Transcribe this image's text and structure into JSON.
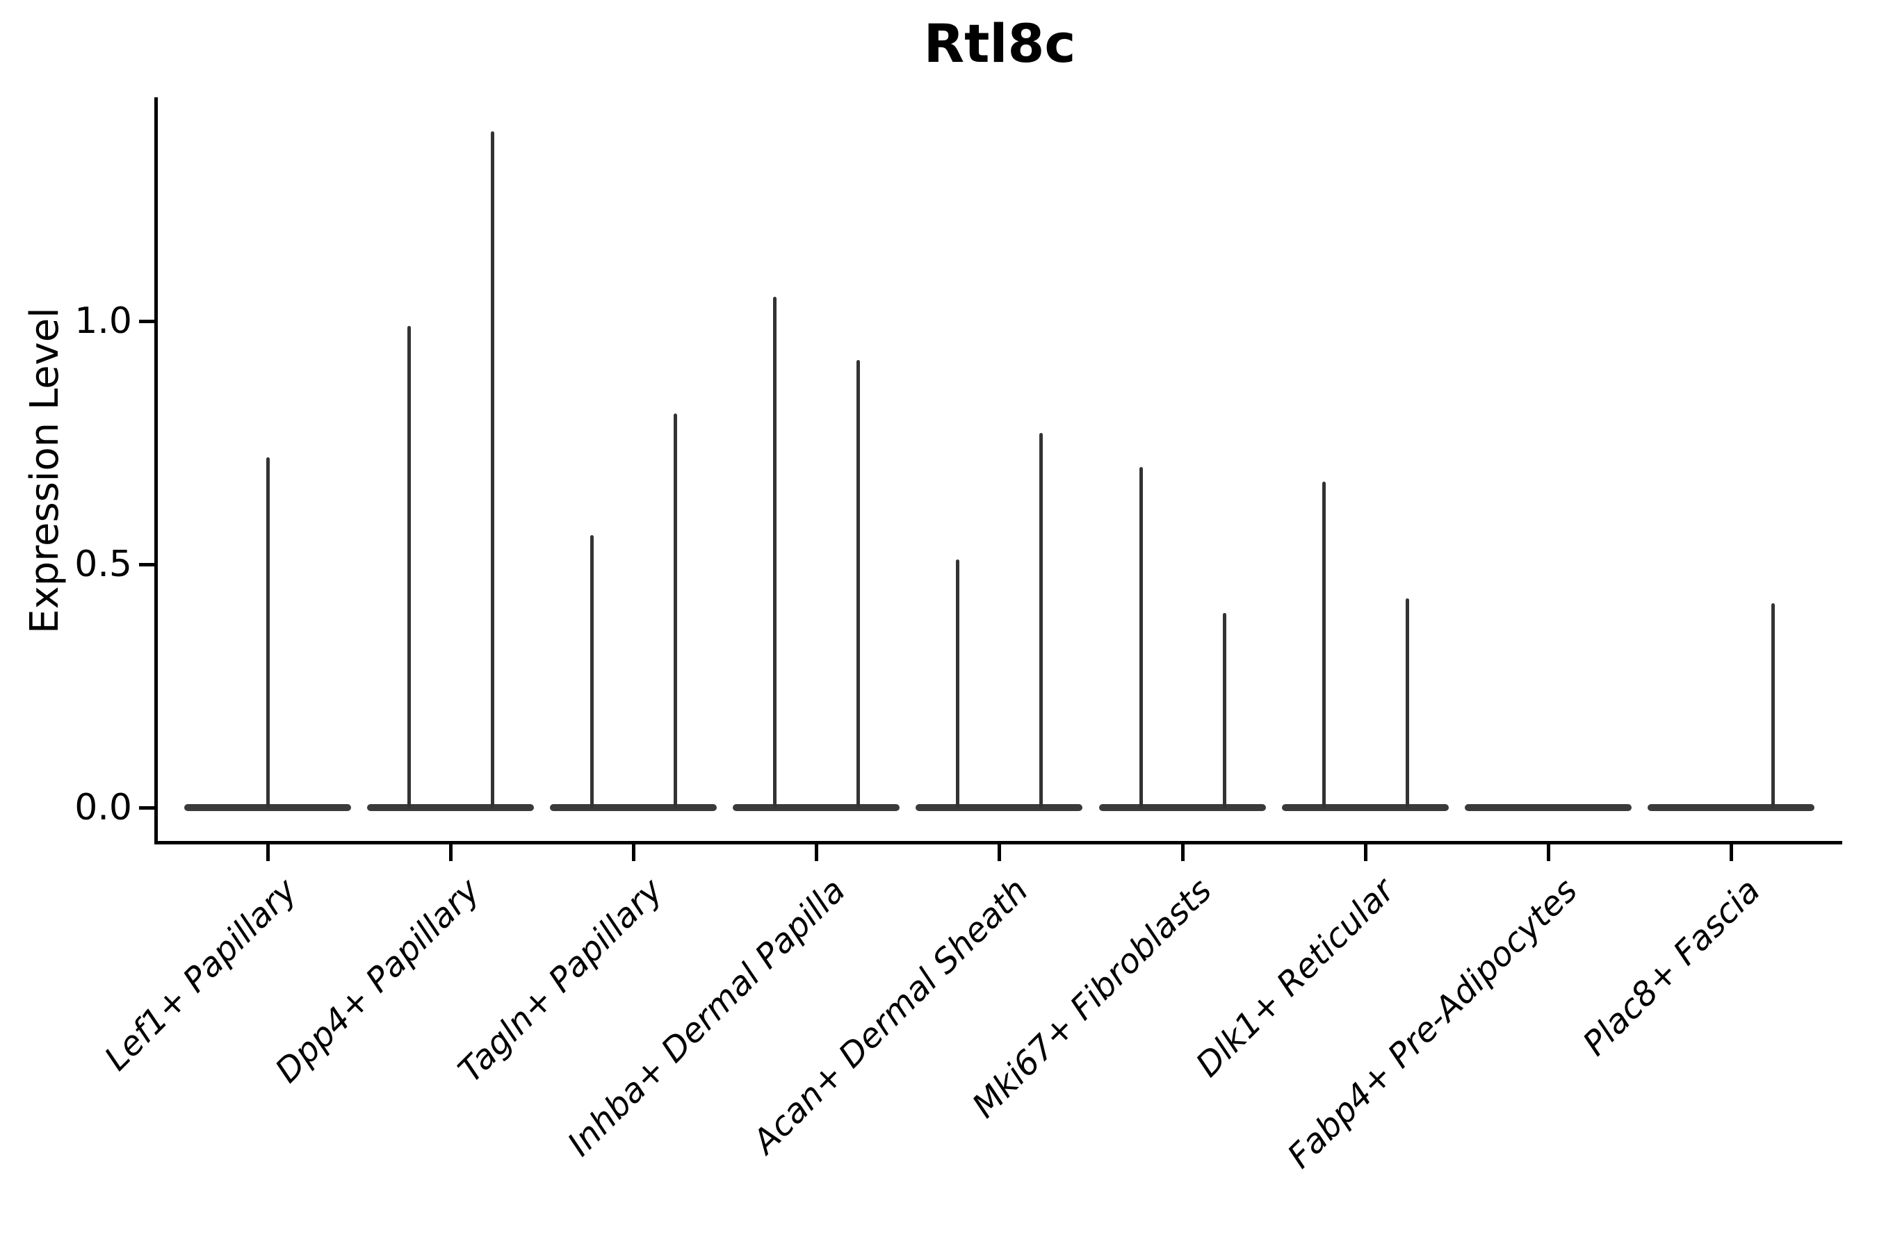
{
  "chart_data": {
    "type": "violin",
    "title": "Rtl8c",
    "ylabel": "Expression Level",
    "xlabel": "",
    "yticks": [
      0.0,
      0.5,
      1.0
    ],
    "ylim": [
      -0.07,
      1.46
    ],
    "grid": false,
    "legend": "none",
    "baseline_value": 0.0,
    "note": "Each violin is flat at 0 with a thin tail (spike) up to the max expression value",
    "categories": [
      "Lef1+ Papillary",
      "Dpp4+ Papillary",
      "Tagln+ Papillary",
      "Inhba+ Dermal Papilla",
      "Acan+ Dermal Sheath",
      "Mki67+ Fibroblasts",
      "Dlk1+ Reticular",
      "Fabp4+ Pre-Adipocytes",
      "Plac8+ Fascia"
    ],
    "violins": [
      {
        "category": "Lef1+ Papillary",
        "spikes": [
          {
            "side": "center",
            "max": 0.72
          }
        ]
      },
      {
        "category": "Dpp4+ Papillary",
        "spikes": [
          {
            "side": "left",
            "max": 0.99
          },
          {
            "side": "right",
            "max": 1.39
          }
        ]
      },
      {
        "category": "Tagln+ Papillary",
        "spikes": [
          {
            "side": "left",
            "max": 0.56
          },
          {
            "side": "right",
            "max": 0.81
          }
        ]
      },
      {
        "category": "Inhba+ Dermal Papilla",
        "spikes": [
          {
            "side": "left",
            "max": 1.05
          },
          {
            "side": "right",
            "max": 0.92
          }
        ]
      },
      {
        "category": "Acan+ Dermal Sheath",
        "spikes": [
          {
            "side": "left",
            "max": 0.51
          },
          {
            "side": "right",
            "max": 0.77
          }
        ]
      },
      {
        "category": "Mki67+ Fibroblasts",
        "spikes": [
          {
            "side": "left",
            "max": 0.7
          },
          {
            "side": "right",
            "max": 0.4
          }
        ]
      },
      {
        "category": "Dlk1+ Reticular",
        "spikes": [
          {
            "side": "left",
            "max": 0.67
          },
          {
            "side": "right",
            "max": 0.43
          }
        ]
      },
      {
        "category": "Fabp4+ Pre-Adipocytes",
        "spikes": []
      },
      {
        "category": "Plac8+ Fascia",
        "spikes": [
          {
            "side": "right",
            "max": 0.42
          }
        ]
      }
    ],
    "colors": {
      "violin_edge": "#3a3a3a",
      "spike": "#333333",
      "spine": "#000000",
      "text": "#000000",
      "background": "#ffffff"
    }
  }
}
